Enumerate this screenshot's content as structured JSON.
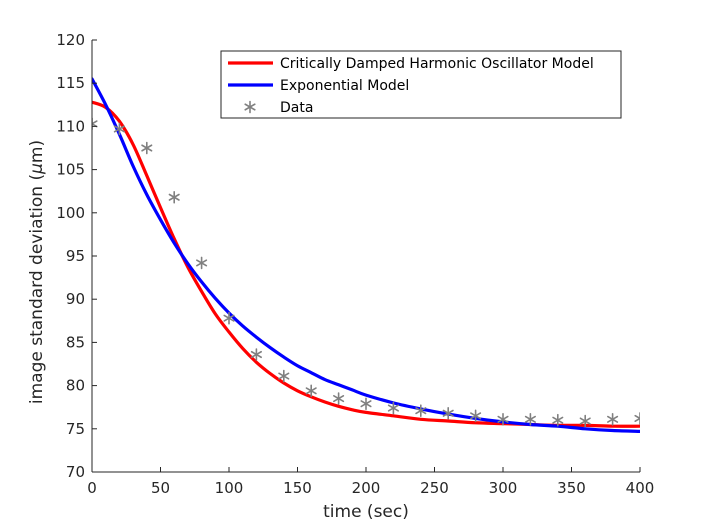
{
  "chart_data": {
    "type": "line",
    "title": "",
    "xlabel": "time (sec)",
    "ylabel_prefix": "image standard deviation (",
    "ylabel_mu": "μ",
    "ylabel_suffix": "m)",
    "xlim": [
      0,
      400
    ],
    "ylim": [
      70,
      120
    ],
    "xticks": [
      0,
      50,
      100,
      150,
      200,
      250,
      300,
      350,
      400
    ],
    "yticks": [
      70,
      75,
      80,
      85,
      90,
      95,
      100,
      105,
      110,
      115,
      120
    ],
    "xtick_labels": [
      "0",
      "50",
      "100",
      "150",
      "200",
      "250",
      "300",
      "350",
      "400"
    ],
    "ytick_labels": [
      "70",
      "75",
      "80",
      "85",
      "90",
      "95",
      "100",
      "105",
      "110",
      "115",
      "120"
    ],
    "grid": false,
    "legend_position": "top-right",
    "series": [
      {
        "name": "Critically Damped Harmonic Oscillator Model",
        "kind": "line",
        "color": "#ff0000",
        "x": [
          0,
          10,
          20,
          30,
          40,
          50,
          60,
          70,
          80,
          90,
          100,
          110,
          120,
          130,
          140,
          150,
          160,
          170,
          180,
          190,
          200,
          220,
          240,
          260,
          280,
          300,
          320,
          340,
          360,
          380,
          400
        ],
        "y": [
          112.8,
          112.2,
          110.6,
          107.9,
          104.3,
          100.6,
          97.0,
          93.7,
          90.9,
          88.3,
          86.2,
          84.3,
          82.7,
          81.4,
          80.3,
          79.4,
          78.7,
          78.1,
          77.6,
          77.2,
          76.9,
          76.5,
          76.1,
          75.9,
          75.7,
          75.6,
          75.5,
          75.4,
          75.4,
          75.3,
          75.3
        ]
      },
      {
        "name": "Exponential Model",
        "kind": "line",
        "color": "#0000ff",
        "x": [
          0,
          10,
          20,
          30,
          40,
          50,
          60,
          70,
          80,
          90,
          100,
          110,
          120,
          130,
          140,
          150,
          160,
          170,
          180,
          190,
          200,
          220,
          240,
          260,
          280,
          300,
          320,
          340,
          360,
          380,
          400
        ],
        "y": [
          115.5,
          112.5,
          109.1,
          105.4,
          102.1,
          99.2,
          96.5,
          94.1,
          92.0,
          90.1,
          88.4,
          86.9,
          85.6,
          84.4,
          83.3,
          82.3,
          81.5,
          80.7,
          80.1,
          79.5,
          78.9,
          78.0,
          77.3,
          76.7,
          76.2,
          75.8,
          75.5,
          75.3,
          75.0,
          74.8,
          74.7
        ]
      },
      {
        "name": "Data",
        "kind": "scatter",
        "marker": "asterisk",
        "color": "#808080",
        "x": [
          0,
          20,
          40,
          60,
          80,
          100,
          120,
          140,
          160,
          180,
          200,
          220,
          240,
          260,
          280,
          300,
          320,
          340,
          360,
          380,
          400
        ],
        "y": [
          110.3,
          109.7,
          107.5,
          101.8,
          94.2,
          87.8,
          83.6,
          81.1,
          79.4,
          78.5,
          77.9,
          77.4,
          77.1,
          76.8,
          76.5,
          76.1,
          76.1,
          76.0,
          75.9,
          76.1,
          76.2
        ]
      }
    ]
  }
}
